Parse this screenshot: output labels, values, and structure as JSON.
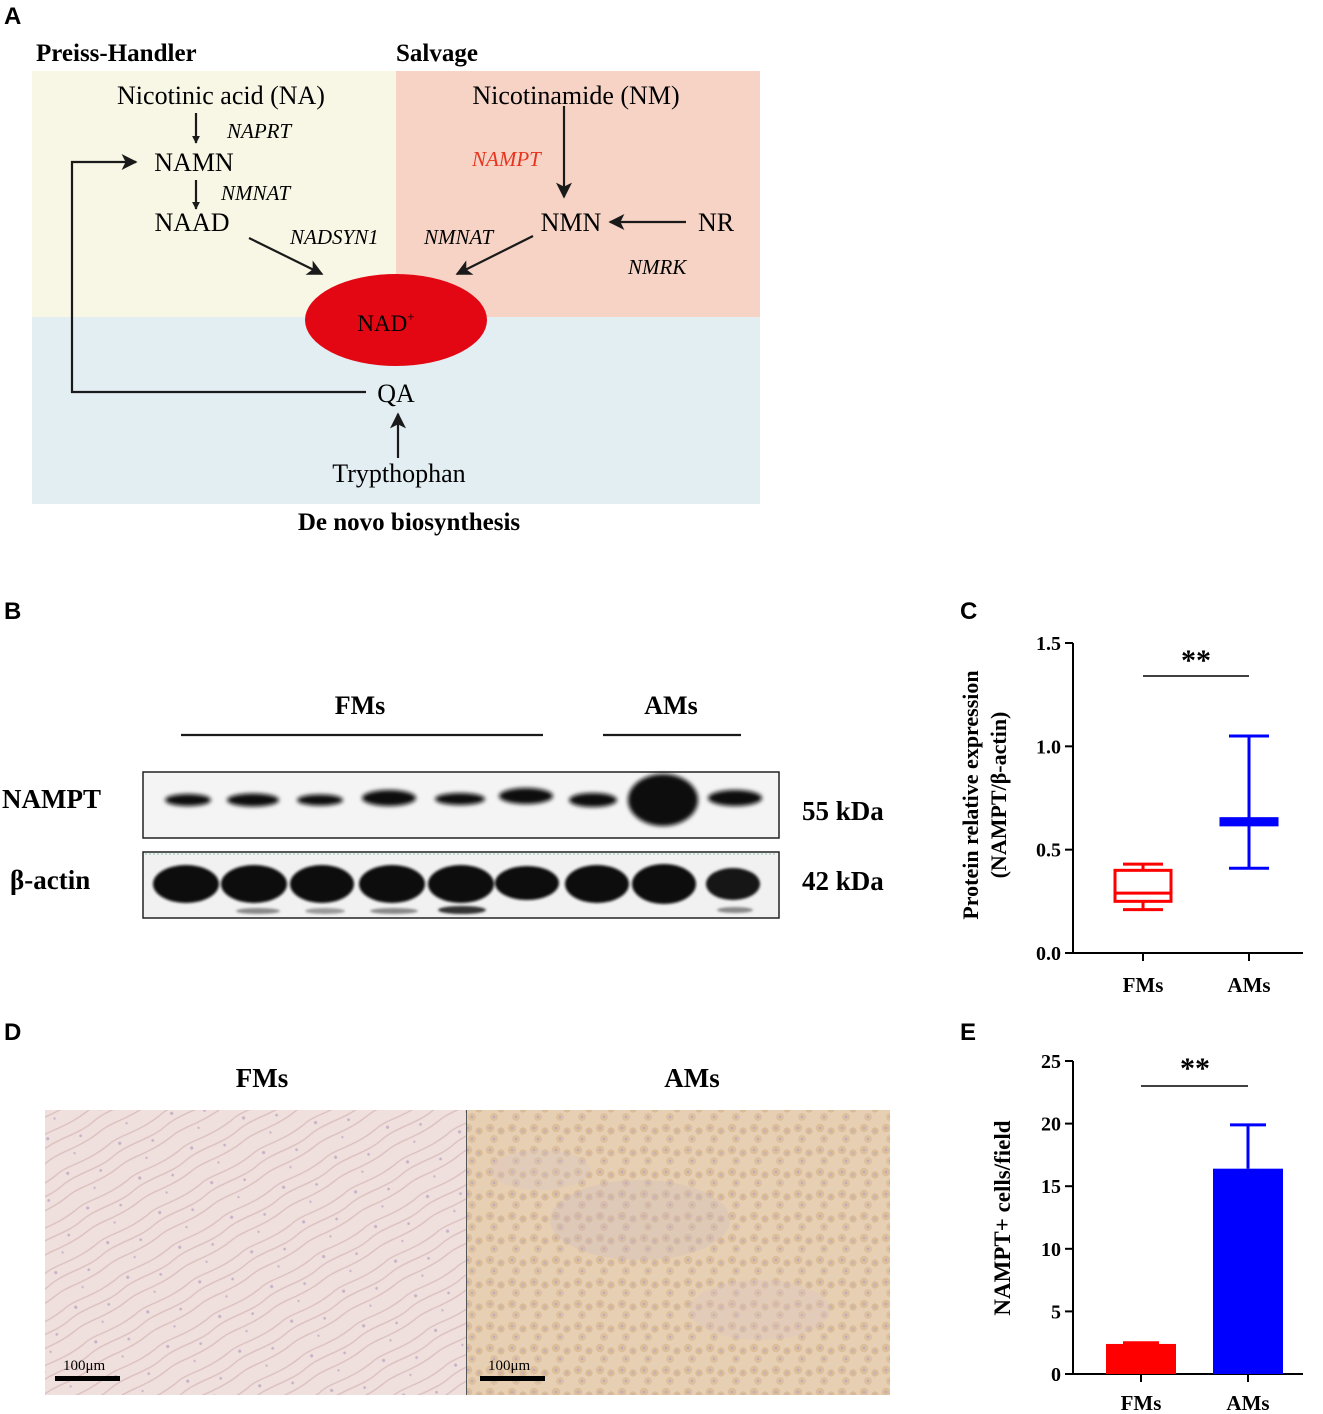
{
  "panels": {
    "a": "A",
    "b": "B",
    "c": "C",
    "d": "D",
    "e": "E"
  },
  "pathway": {
    "region_preiss": "Preiss-Handler",
    "region_salvage": "Salvage",
    "region_denovo": "De novo biosynthesis",
    "colors": {
      "preiss": "#f8f6e5",
      "salvage": "#f6d3c5",
      "denovo": "#e3eef3",
      "nad": "#e30613",
      "highlight": "#e8341e"
    },
    "nodes": {
      "na": "Nicotinic acid (NA)",
      "namn": "NAMN",
      "naad": "NAAD",
      "nm": "Nicotinamide (NM)",
      "nmn": "NMN",
      "nr": "NR",
      "nad": "NAD",
      "nad_sup": "+",
      "qa": "QA",
      "trp": "Trypthophan"
    },
    "enzymes": {
      "naprt": "NAPRT",
      "nmnat1": "NMNAT",
      "nadsyn1": "NADSYN1",
      "nampt": "NAMPT",
      "nmnat2": "NMNAT",
      "nmrk": "NMRK"
    }
  },
  "blot": {
    "group_fms": "FMs",
    "group_ams": "AMs",
    "row1_label": "NAMPT",
    "row2_label": "β-actin",
    "row1_mw": "55 kDa",
    "row2_mw": "42 kDa"
  },
  "chart_data": [
    {
      "type": "box",
      "panel": "C",
      "ylabel_line1": "Protein relative expression",
      "ylabel_line2": "(NAMPT/β-actin)",
      "categories": [
        "FMs",
        "AMs"
      ],
      "ylim": [
        0,
        1.5
      ],
      "yticks": [
        "0.0",
        "0.5",
        "1.0",
        "1.5"
      ],
      "ytick_values": [
        0,
        0.5,
        1.0,
        1.5
      ],
      "boxes": [
        {
          "name": "FMs",
          "min": 0.21,
          "q1": 0.25,
          "median": 0.29,
          "q3": 0.4,
          "max": 0.43,
          "color": "#ff0000"
        },
        {
          "name": "AMs",
          "min": 0.41,
          "q1": 0.62,
          "median": 0.64,
          "q3": 0.65,
          "max": 1.05,
          "color": "#0000ff"
        }
      ],
      "significance": "**"
    },
    {
      "type": "bar",
      "panel": "E",
      "ylabel": "NAMPT+ cells/field",
      "categories": [
        "FMs",
        "AMs"
      ],
      "values": [
        2.4,
        16.4
      ],
      "errors": [
        0.1,
        3.5
      ],
      "colors": [
        "#ff0000",
        "#0000ff"
      ],
      "ylim": [
        0,
        25
      ],
      "yticks": [
        "0",
        "5",
        "10",
        "15",
        "20",
        "25"
      ],
      "ytick_values": [
        0,
        5,
        10,
        15,
        20,
        25
      ],
      "significance": "**"
    }
  ],
  "ihc": {
    "label_fms": "FMs",
    "label_ams": "AMs",
    "scale_fms": "100μm",
    "scale_ams": "100μm",
    "colors": {
      "fms": "#eddcd9",
      "ams": "#e7cfb3"
    }
  }
}
